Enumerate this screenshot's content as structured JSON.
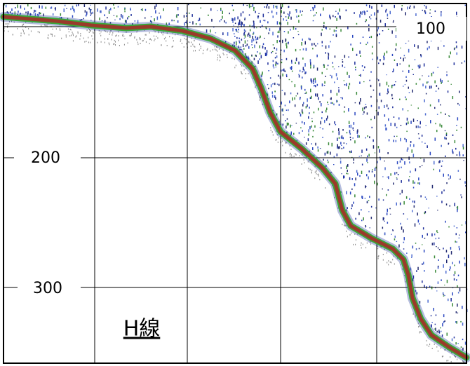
{
  "depth_labels": [
    "100",
    "200",
    "300"
  ],
  "caption": "H線"
}
